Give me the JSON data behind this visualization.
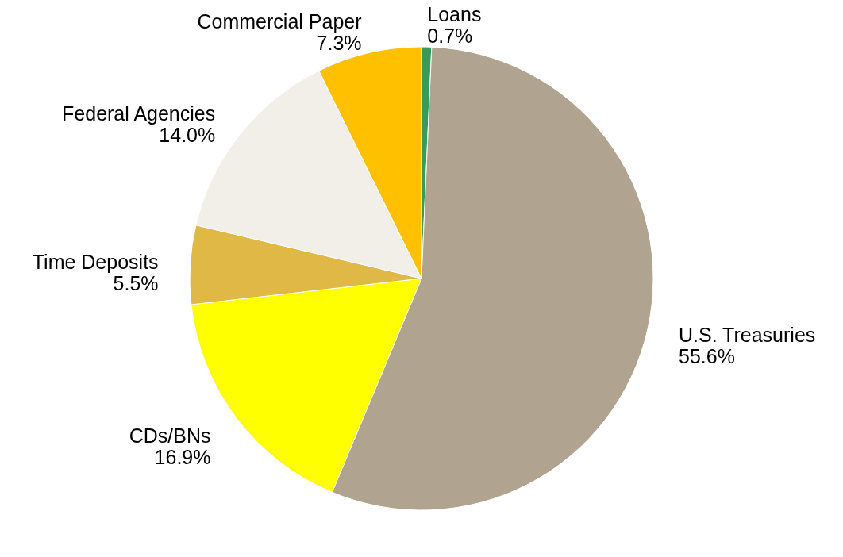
{
  "chart_data": {
    "type": "pie",
    "categories": [
      "Loans",
      "U.S. Treasuries",
      "CDs/BNs",
      "Time Deposits",
      "Federal Agencies",
      "Commercial Paper"
    ],
    "values": [
      0.7,
      55.6,
      16.9,
      5.5,
      14.0,
      7.3
    ],
    "value_labels": [
      "0.7%",
      "55.6%",
      "16.9%",
      "5.5%",
      "14.0%",
      "7.3%"
    ],
    "colors": [
      "#3a9a5a",
      "#b0a390",
      "#ffff00",
      "#e0b846",
      "#f2efe9",
      "#ffc000"
    ]
  }
}
